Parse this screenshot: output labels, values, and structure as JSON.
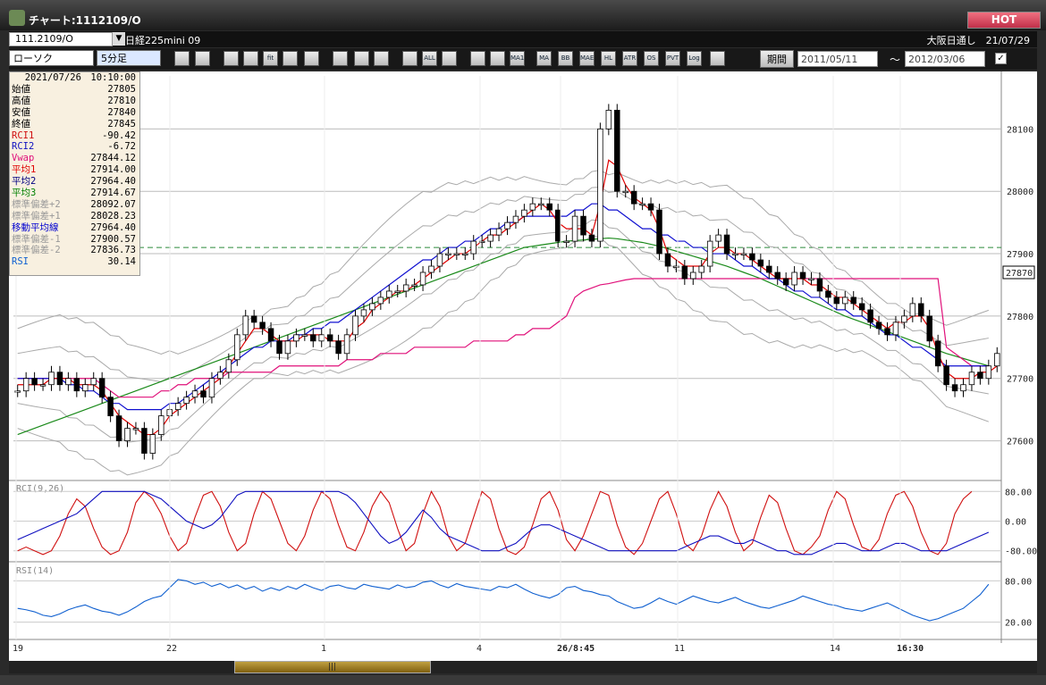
{
  "window": {
    "title": "チャート:1112109/O",
    "hot_label": "HOT"
  },
  "header": {
    "symbol_code": "111.2109/O",
    "instrument": "日経225mini 09",
    "session_info": "大阪日通し　21/07/29"
  },
  "toolbar": {
    "chart_type": "ローソク",
    "interval": "5分足",
    "period_label": "期間",
    "date_from": "2011/05/11",
    "date_sep": "～",
    "date_to": "2012/03/06",
    "check": "✓",
    "buttons": [
      "zoom",
      "cross",
      "down",
      "zoom-in",
      "fit",
      "help",
      "draw",
      "cursor",
      "undo",
      "box1",
      "box2",
      "ALL",
      "grid",
      "edit",
      "color",
      "MA1",
      "MA",
      "BB",
      "MAE",
      "HL",
      "ATR",
      "OS",
      "PVT",
      "Log",
      "split"
    ]
  },
  "info": {
    "datetime": "2021/07/26　10:10:00",
    "rows": [
      {
        "label": "始値",
        "value": "27805",
        "color": "#000000"
      },
      {
        "label": "高値",
        "value": "27810",
        "color": "#000000"
      },
      {
        "label": "安値",
        "value": "27840",
        "color": "#000000"
      },
      {
        "label": "終値",
        "value": "27845",
        "color": "#000000"
      },
      {
        "label": "RCI1",
        "value": "-90.42",
        "color": "#d01010"
      },
      {
        "label": "RCI2",
        "value": "-6.72",
        "color": "#1010c0"
      },
      {
        "label": "Vwap",
        "value": "27844.12",
        "color": "#e0107a"
      },
      {
        "label": "平均1",
        "value": "27914.00",
        "color": "#e00000"
      },
      {
        "label": "平均2",
        "value": "27964.40",
        "color": "#000080"
      },
      {
        "label": "平均3",
        "value": "27914.67",
        "color": "#008000"
      },
      {
        "label": "標準偏差+2",
        "value": "28092.07",
        "color": "#999999"
      },
      {
        "label": "標準偏差+1",
        "value": "28028.23",
        "color": "#999999"
      },
      {
        "label": "移動平均線",
        "value": "27964.40",
        "color": "#0000d0"
      },
      {
        "label": "標準偏差-1",
        "value": "27900.57",
        "color": "#999999"
      },
      {
        "label": "標準偏差-2",
        "value": "27836.73",
        "color": "#999999"
      },
      {
        "label": "RSI",
        "value": "30.14",
        "color": "#1060d0"
      }
    ]
  },
  "chart_data": [
    {
      "type": "candlestick",
      "title": "日経225mini 09",
      "ylim": [
        27555,
        28185
      ],
      "y_ticks": [
        28100,
        28000,
        27900,
        27800,
        27700,
        27600
      ],
      "x_ticks": [
        "19",
        "22",
        "1",
        "4",
        "26/8:45",
        "11",
        "14",
        "16:30"
      ],
      "current_price": "27870",
      "dashed_level": 27910,
      "close": [
        27680,
        27700,
        27690,
        27690,
        27710,
        27690,
        27700,
        27680,
        27690,
        27700,
        27670,
        27640,
        27600,
        27620,
        27620,
        27580,
        27610,
        27640,
        27650,
        27660,
        27670,
        27680,
        27670,
        27700,
        27710,
        27730,
        27770,
        27800,
        27790,
        27780,
        27760,
        27740,
        27760,
        27770,
        27770,
        27760,
        27770,
        27760,
        27740,
        27770,
        27800,
        27810,
        27820,
        27830,
        27840,
        27840,
        27850,
        27850,
        27870,
        27880,
        27900,
        27900,
        27900,
        27900,
        27920,
        27920,
        27930,
        27940,
        27950,
        27960,
        27970,
        27980,
        27980,
        27970,
        27920,
        27920,
        27960,
        27930,
        27920,
        28100,
        28130,
        28000,
        28000,
        27980,
        27980,
        27970,
        27900,
        27880,
        27880,
        27860,
        27870,
        27880,
        27920,
        27930,
        27900,
        27900,
        27900,
        27890,
        27880,
        27870,
        27860,
        27850,
        27870,
        27860,
        27860,
        27840,
        27830,
        27820,
        27830,
        27820,
        27810,
        27790,
        27780,
        27770,
        27790,
        27800,
        27820,
        27800,
        27760,
        27720,
        27690,
        27680,
        27690,
        27710,
        27700,
        27720,
        27740
      ],
      "ma_short": [
        27690,
        27690,
        27690,
        27690,
        27700,
        27700,
        27700,
        27690,
        27690,
        27690,
        27680,
        27660,
        27640,
        27630,
        27620,
        27610,
        27610,
        27620,
        27640,
        27650,
        27660,
        27670,
        27680,
        27690,
        27700,
        27720,
        27740,
        27760,
        27780,
        27780,
        27770,
        27760,
        27760,
        27760,
        27770,
        27770,
        27770,
        27760,
        27760,
        27760,
        27780,
        27790,
        27810,
        27820,
        27830,
        27840,
        27840,
        27850,
        27860,
        27870,
        27880,
        27890,
        27900,
        27900,
        27910,
        27920,
        27930,
        27930,
        27940,
        27950,
        27960,
        27970,
        27980,
        27970,
        27950,
        27940,
        27940,
        27940,
        27930,
        27980,
        28050,
        28040,
        28010,
        27990,
        27980,
        27970,
        27940,
        27900,
        27890,
        27880,
        27880,
        27880,
        27900,
        27910,
        27910,
        27900,
        27900,
        27890,
        27880,
        27870,
        27860,
        27860,
        27860,
        27860,
        27850,
        27850,
        27840,
        27830,
        27830,
        27820,
        27810,
        27800,
        27790,
        27780,
        27790,
        27790,
        27800,
        27800,
        27780,
        27740,
        27710,
        27700,
        27700,
        27700,
        27710,
        27710,
        27720
      ],
      "ma_mid": [
        27700,
        27700,
        27700,
        27700,
        27700,
        27700,
        27690,
        27690,
        27680,
        27680,
        27670,
        27660,
        27660,
        27650,
        27650,
        27650,
        27650,
        27650,
        27660,
        27660,
        27670,
        27680,
        27690,
        27700,
        27710,
        27720,
        27730,
        27740,
        27750,
        27750,
        27760,
        27760,
        27760,
        27770,
        27770,
        27780,
        27780,
        27790,
        27790,
        27800,
        27810,
        27820,
        27830,
        27840,
        27850,
        27860,
        27870,
        27880,
        27890,
        27890,
        27900,
        27910,
        27910,
        27920,
        27920,
        27930,
        27940,
        27940,
        27950,
        27950,
        27960,
        27960,
        27960,
        27960,
        27960,
        27960,
        27970,
        27970,
        27980,
        27980,
        27970,
        27970,
        27960,
        27950,
        27940,
        27940,
        27930,
        27930,
        27920,
        27920,
        27910,
        27910,
        27900,
        27900,
        27900,
        27890,
        27880,
        27880,
        27870,
        27860,
        27860,
        27850,
        27840,
        27840,
        27830,
        27830,
        27820,
        27810,
        27810,
        27800,
        27800,
        27790,
        27780,
        27770,
        27770,
        27760,
        27750,
        27750,
        27740,
        27730,
        27720,
        27720,
        27720,
        27720,
        27720,
        27720
      ],
      "ma_long": [
        27610,
        27615,
        27620,
        27625,
        27630,
        27635,
        27640,
        27645,
        27650,
        27655,
        27660,
        27665,
        27670,
        27675,
        27680,
        27685,
        27690,
        27695,
        27700,
        27705,
        27710,
        27715,
        27720,
        27725,
        27730,
        27735,
        27740,
        27745,
        27750,
        27755,
        27760,
        27765,
        27770,
        27775,
        27780,
        27785,
        27790,
        27795,
        27800,
        27805,
        27810,
        27815,
        27820,
        27825,
        27830,
        27835,
        27840,
        27845,
        27850,
        27855,
        27860,
        27865,
        27870,
        27875,
        27880,
        27885,
        27890,
        27895,
        27900,
        27905,
        27910,
        27912,
        27914,
        27916,
        27918,
        27920,
        27921,
        27922,
        27923,
        27924,
        27925,
        27924,
        27922,
        27920,
        27918,
        27915,
        27912,
        27908,
        27904,
        27900,
        27896,
        27892,
        27888,
        27884,
        27880,
        27875,
        27870,
        27865,
        27860,
        27854,
        27848,
        27842,
        27836,
        27830,
        27824,
        27818,
        27812,
        27806,
        27800,
        27795,
        27790,
        27785,
        27780,
        27775,
        27770,
        27765,
        27760,
        27755,
        27750,
        27745,
        27740,
        27736,
        27732,
        27728,
        27724,
        27720
      ],
      "vwap": [
        27700,
        27700,
        27700,
        27700,
        27700,
        27700,
        27700,
        27700,
        27700,
        27700,
        27690,
        27680,
        27670,
        27670,
        27670,
        27670,
        27670,
        27680,
        27680,
        27690,
        27690,
        27700,
        27700,
        27700,
        27700,
        27710,
        27710,
        27710,
        27710,
        27710,
        27710,
        27720,
        27720,
        27720,
        27720,
        27720,
        27720,
        27720,
        27720,
        27730,
        27730,
        27730,
        27730,
        27740,
        27740,
        27740,
        27740,
        27750,
        27750,
        27750,
        27750,
        27750,
        27750,
        27750,
        27760,
        27760,
        27760,
        27760,
        27760,
        27770,
        27770,
        27780,
        27780,
        27780,
        27790,
        27800,
        27830,
        27840,
        27845,
        27850,
        27852,
        27855,
        27858,
        27860,
        27860,
        27860,
        27860,
        27860,
        27860,
        27860,
        27860,
        27860,
        27860,
        27860,
        27860,
        27860,
        27860,
        27860,
        27860,
        27860,
        27860,
        27860,
        27860,
        27860,
        27860,
        27860,
        27860,
        27860,
        27860,
        27860,
        27860,
        27860,
        27860,
        27860,
        27860,
        27860,
        27860,
        27860,
        27860,
        27860,
        27750,
        27740,
        27730,
        27720,
        27720,
        27720
      ]
    },
    {
      "type": "line",
      "title": "RCI(9,26)",
      "y_ticks": [
        "80.00",
        "0.00",
        "-80.00"
      ],
      "ylim": [
        -100,
        100
      ],
      "series": [
        {
          "values": [
            -80,
            -70,
            -80,
            -90,
            -80,
            -40,
            20,
            60,
            40,
            -20,
            -70,
            -90,
            -80,
            -30,
            50,
            80,
            60,
            20,
            -40,
            -80,
            -60,
            10,
            70,
            80,
            40,
            -30,
            -80,
            -60,
            20,
            80,
            60,
            0,
            -60,
            -80,
            -40,
            30,
            80,
            60,
            -10,
            -70,
            -80,
            -30,
            40,
            80,
            50,
            -20,
            -80,
            -60,
            20,
            80,
            40,
            -40,
            -80,
            -60,
            10,
            80,
            60,
            -20,
            -80,
            -90,
            -70,
            -10,
            60,
            80,
            30,
            -50,
            -80,
            -40,
            20,
            80,
            70,
            -10,
            -70,
            -90,
            -60,
            0,
            60,
            80,
            20,
            -60,
            -80,
            -40,
            30,
            80,
            40,
            -30,
            -80,
            -60,
            10,
            70,
            50,
            -20,
            -80,
            -90,
            -70,
            -40,
            30,
            80,
            60,
            -10,
            -70,
            -80,
            -50,
            20,
            70,
            80,
            40,
            -30,
            -80,
            -90,
            -60,
            20,
            60,
            80
          ]
        },
        {
          "values": [
            -50,
            -40,
            -30,
            -20,
            -10,
            0,
            10,
            20,
            40,
            60,
            80,
            80,
            80,
            80,
            80,
            80,
            70,
            60,
            40,
            20,
            0,
            -10,
            -20,
            -10,
            10,
            40,
            70,
            80,
            80,
            80,
            80,
            80,
            80,
            80,
            80,
            80,
            80,
            80,
            80,
            70,
            50,
            20,
            -10,
            -40,
            -60,
            -50,
            -30,
            0,
            30,
            10,
            -20,
            -40,
            -50,
            -60,
            -70,
            -80,
            -80,
            -80,
            -70,
            -60,
            -40,
            -20,
            -10,
            -10,
            -20,
            -30,
            -40,
            -50,
            -60,
            -70,
            -80,
            -80,
            -80,
            -80,
            -80,
            -80,
            -80,
            -80,
            -80,
            -70,
            -60,
            -50,
            -40,
            -40,
            -50,
            -60,
            -60,
            -50,
            -60,
            -70,
            -80,
            -80,
            -90,
            -90,
            -90,
            -80,
            -70,
            -60,
            -60,
            -70,
            -80,
            -80,
            -80,
            -70,
            -60,
            -60,
            -70,
            -80,
            -80,
            -80,
            -80,
            -70,
            -60,
            -50,
            -40,
            -30
          ]
        }
      ]
    },
    {
      "type": "line",
      "title": "RSI(14)",
      "y_ticks": [
        "80.00",
        "20.00"
      ],
      "ylim": [
        0,
        100
      ],
      "series": [
        {
          "values": [
            40,
            38,
            35,
            30,
            28,
            32,
            38,
            42,
            45,
            40,
            36,
            34,
            30,
            35,
            42,
            50,
            55,
            58,
            70,
            82,
            80,
            75,
            78,
            72,
            76,
            70,
            74,
            68,
            72,
            65,
            70,
            66,
            72,
            68,
            75,
            70,
            66,
            72,
            74,
            70,
            68,
            75,
            72,
            70,
            68,
            74,
            70,
            72,
            78,
            80,
            74,
            70,
            76,
            72,
            70,
            68,
            66,
            72,
            70,
            75,
            68,
            62,
            58,
            55,
            60,
            70,
            72,
            66,
            64,
            60,
            58,
            50,
            45,
            40,
            42,
            48,
            55,
            50,
            46,
            52,
            58,
            54,
            50,
            48,
            52,
            56,
            50,
            46,
            42,
            40,
            44,
            48,
            52,
            58,
            54,
            50,
            46,
            44,
            40,
            38,
            36,
            40,
            44,
            48,
            42,
            36,
            30,
            26,
            22,
            25,
            30,
            35,
            40,
            50,
            60,
            75
          ]
        }
      ]
    }
  ]
}
